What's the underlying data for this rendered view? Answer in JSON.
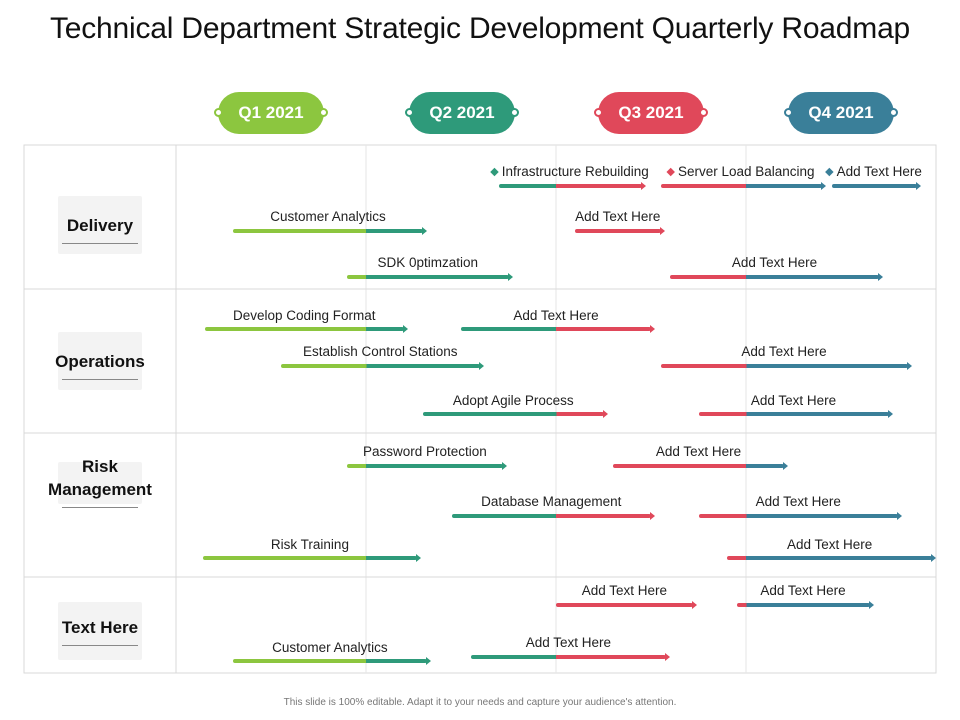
{
  "title": "Technical Department Strategic Development Quarterly Roadmap",
  "colors": {
    "green": "#8cc63f",
    "teal": "#2e9a7a",
    "red": "#e0485a",
    "blue": "#3a7f99"
  },
  "quarters": [
    {
      "label": "Q1 2021",
      "color": "#8cc63f"
    },
    {
      "label": "Q2 2021",
      "color": "#2e9a7a"
    },
    {
      "label": "Q3 2021",
      "color": "#e0485a"
    },
    {
      "label": "Q4 2021",
      "color": "#3a7f99"
    }
  ],
  "rows": [
    {
      "label": "Delivery"
    },
    {
      "label": "Operations"
    },
    {
      "label": "Risk Management"
    },
    {
      "label": "Text Here"
    }
  ],
  "bars": [
    {
      "row": 0,
      "label": "Infrastructure Rebuilding",
      "start": 1.7,
      "end": 2.45,
      "marker": "teal"
    },
    {
      "row": 0,
      "label": "Server Load Balancing",
      "start": 2.55,
      "end": 3.4,
      "marker": "red"
    },
    {
      "row": 0,
      "label": "Add Text Here",
      "start": 3.45,
      "end": 3.9,
      "marker": "blue"
    },
    {
      "row": 0,
      "label": "Customer Analytics",
      "start": 0.3,
      "end": 1.3
    },
    {
      "row": 0,
      "label": "Add Text Here",
      "start": 2.1,
      "end": 2.55
    },
    {
      "row": 0,
      "label": "SDK 0ptimzation",
      "start": 0.9,
      "end": 1.75
    },
    {
      "row": 0,
      "label": "Add Text Here",
      "start": 2.6,
      "end": 3.7
    },
    {
      "row": 1,
      "label": "Develop Coding Format",
      "start": 0.15,
      "end": 1.2
    },
    {
      "row": 1,
      "label": "Add Text Here",
      "start": 1.5,
      "end": 2.5
    },
    {
      "row": 1,
      "label": "Establish Control Stations",
      "start": 0.55,
      "end": 1.6
    },
    {
      "row": 1,
      "label": "Add Text Here",
      "start": 2.55,
      "end": 3.85
    },
    {
      "row": 1,
      "label": "Adopt Agile Process",
      "start": 1.3,
      "end": 2.25
    },
    {
      "row": 1,
      "label": "Add Text Here",
      "start": 2.75,
      "end": 3.75
    },
    {
      "row": 2,
      "label": "Password Protection",
      "start": 0.9,
      "end": 1.72
    },
    {
      "row": 2,
      "label": "Add Text Here",
      "start": 2.3,
      "end": 3.2
    },
    {
      "row": 2,
      "label": "Database Management",
      "start": 1.45,
      "end": 2.5
    },
    {
      "row": 2,
      "label": "Add Text Here",
      "start": 2.75,
      "end": 3.8
    },
    {
      "row": 2,
      "label": "Risk Training",
      "start": 0.14,
      "end": 1.27
    },
    {
      "row": 2,
      "label": "Add Text Here",
      "start": 2.9,
      "end": 3.98
    },
    {
      "row": 3,
      "label": "Add Text Here",
      "start": 2.0,
      "end": 2.72
    },
    {
      "row": 3,
      "label": "Add Text Here",
      "start": 2.95,
      "end": 3.65
    },
    {
      "row": 3,
      "label": "Customer Analytics",
      "start": 0.3,
      "end": 1.32
    },
    {
      "row": 3,
      "label": "Add Text Here",
      "start": 1.55,
      "end": 2.58
    }
  ],
  "footer": "This slide is 100% editable. Adapt it to your needs and capture your audience's attention."
}
